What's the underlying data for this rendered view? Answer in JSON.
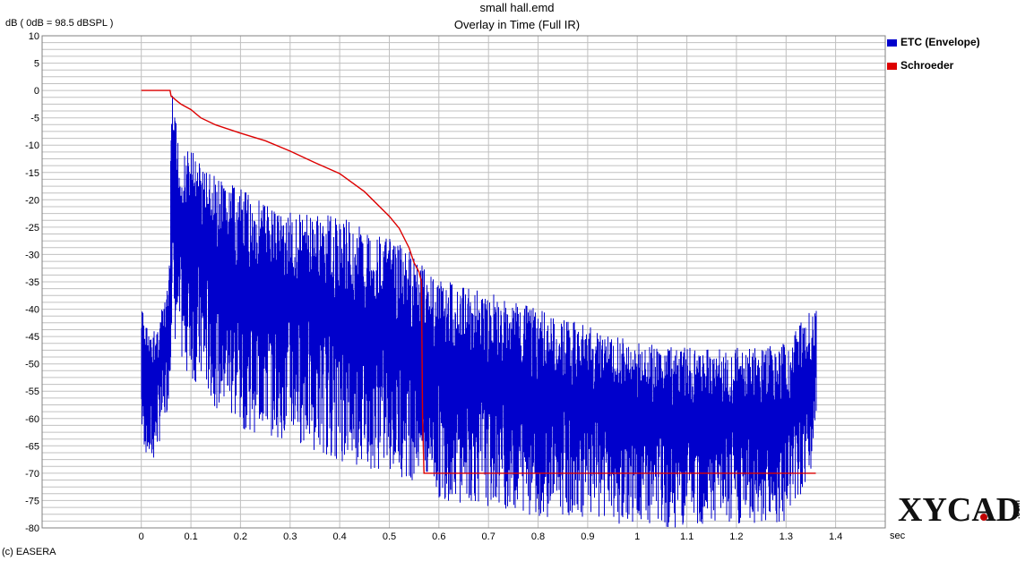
{
  "header": {
    "title": "small hall.emd",
    "subtitle": "Overlay in Time (Full IR)",
    "y_caption": "dB ( 0dB = 98.5 dBSPL )",
    "x_unit": "sec",
    "footer": "(c) EASERA"
  },
  "logo": {
    "text": "XYCAD",
    "suffix": ".com"
  },
  "colors": {
    "etc": "#0000cc",
    "schroeder": "#dd0000",
    "grid": "#c0c0c0",
    "frame": "#808080"
  },
  "chart_data": {
    "type": "line",
    "title": "Overlay in Time (Full IR)",
    "xlabel": "sec",
    "ylabel": "dB ( 0dB = 98.5 dBSPL )",
    "xlim": [
      -0.2,
      1.5
    ],
    "ylim": [
      -80,
      10
    ],
    "xticks": [
      0,
      0.1,
      0.2,
      0.3,
      0.4,
      0.5,
      0.6,
      0.7,
      0.8,
      0.9,
      1,
      1.1,
      1.2,
      1.3,
      1.4
    ],
    "xtick_labels": [
      "0",
      "0.1",
      "0.2",
      "0.3",
      "0.4",
      "0.5",
      "0.6",
      "0.7",
      "0.8",
      "0.9",
      "1",
      "1.1",
      "1.2",
      "1.3",
      "1.4"
    ],
    "yticks": [
      10,
      5,
      0,
      -5,
      -10,
      -15,
      -20,
      -25,
      -30,
      -35,
      -40,
      -45,
      -50,
      -55,
      -60,
      -65,
      -70,
      -75,
      -80
    ],
    "ytick_labels": [
      "10",
      "5",
      "0",
      "-5",
      "-10",
      "-15",
      "-20",
      "-25",
      "-30",
      "-35",
      "-40",
      "-45",
      "-50",
      "-55",
      "-60",
      "-65",
      "-70",
      "-75",
      "-80"
    ],
    "legend_position": "right",
    "grid": true,
    "series": [
      {
        "name": "ETC (Envelope)",
        "color": "#0000cc",
        "x": [
          0,
          0.02,
          0.05,
          0.058,
          0.06,
          0.08,
          0.1,
          0.15,
          0.2,
          0.3,
          0.4,
          0.5,
          0.57,
          0.6,
          0.7,
          0.8,
          0.9,
          1.0,
          1.1,
          1.2,
          1.25,
          1.3,
          1.35,
          1.36
        ],
        "upper": [
          -39,
          -45,
          -38,
          -30,
          1,
          -12,
          -10,
          -16,
          -18,
          -22,
          -23,
          -27,
          -31,
          -34,
          -37,
          -40,
          -43,
          -46,
          -47,
          -47,
          -47,
          -46,
          -40,
          -40
        ],
        "lower": [
          -64,
          -70,
          -60,
          -55,
          -45,
          -50,
          -53,
          -58,
          -62,
          -64,
          -68,
          -70,
          -72,
          -75,
          -76,
          -78,
          -78,
          -80,
          -80,
          -80,
          -80,
          -79,
          -71,
          -61
        ]
      },
      {
        "name": "Schroeder",
        "color": "#dd0000",
        "x": [
          0,
          0.058,
          0.06,
          0.07,
          0.08,
          0.1,
          0.12,
          0.15,
          0.2,
          0.25,
          0.3,
          0.35,
          0.4,
          0.45,
          0.5,
          0.52,
          0.54,
          0.55,
          0.56,
          0.565,
          0.567,
          0.57,
          1.36
        ],
        "y": [
          0,
          0,
          -1,
          -1.8,
          -2.5,
          -3.5,
          -5,
          -6.3,
          -7.8,
          -9.2,
          -11.1,
          -13.2,
          -15.2,
          -18.5,
          -23,
          -25.2,
          -28.8,
          -31.5,
          -33.2,
          -35,
          -60,
          -70,
          -70
        ]
      }
    ]
  }
}
